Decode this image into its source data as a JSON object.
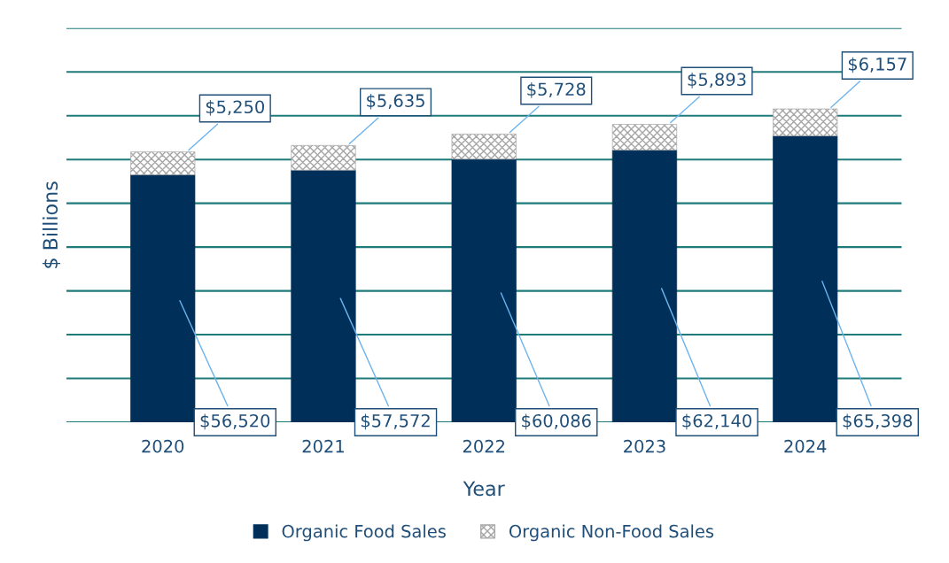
{
  "chart_data": {
    "type": "bar",
    "stacked": true,
    "xlabel": "Year",
    "ylabel": "$ Billions",
    "categories": [
      "2020",
      "2021",
      "2022",
      "2023",
      "2024"
    ],
    "series": [
      {
        "name": "Organic Food Sales",
        "color": "#00305a",
        "values": [
          56520,
          57572,
          60086,
          62140,
          65398
        ],
        "value_labels": [
          "$56,520",
          "$57,572",
          "$60,086",
          "$62,140",
          "$65,398"
        ]
      },
      {
        "name": "Organic Non-Food Sales",
        "color": "#a6a6a6",
        "values": [
          5250,
          5635,
          5728,
          5893,
          6157
        ],
        "value_labels": [
          "$5,250",
          "$5,635",
          "$5,728",
          "$5,893",
          "$6,157"
        ]
      }
    ],
    "ylim": [
      0,
      90000
    ],
    "yticks": [
      {
        "value": 0,
        "label": null
      },
      {
        "value": 10000,
        "label": null
      },
      {
        "value": 20000,
        "label": null
      },
      {
        "value": 30000,
        "label": null
      },
      {
        "value": 40000,
        "label": null
      },
      {
        "value": 50000,
        "label": null
      },
      {
        "value": 60000,
        "label": null
      },
      {
        "value": 70000,
        "label": null
      },
      {
        "value": 80000,
        "label": null
      },
      {
        "value": 90000,
        "label": null
      }
    ],
    "tick_labels": "x",
    "grid": "y",
    "legend": "bottom"
  }
}
